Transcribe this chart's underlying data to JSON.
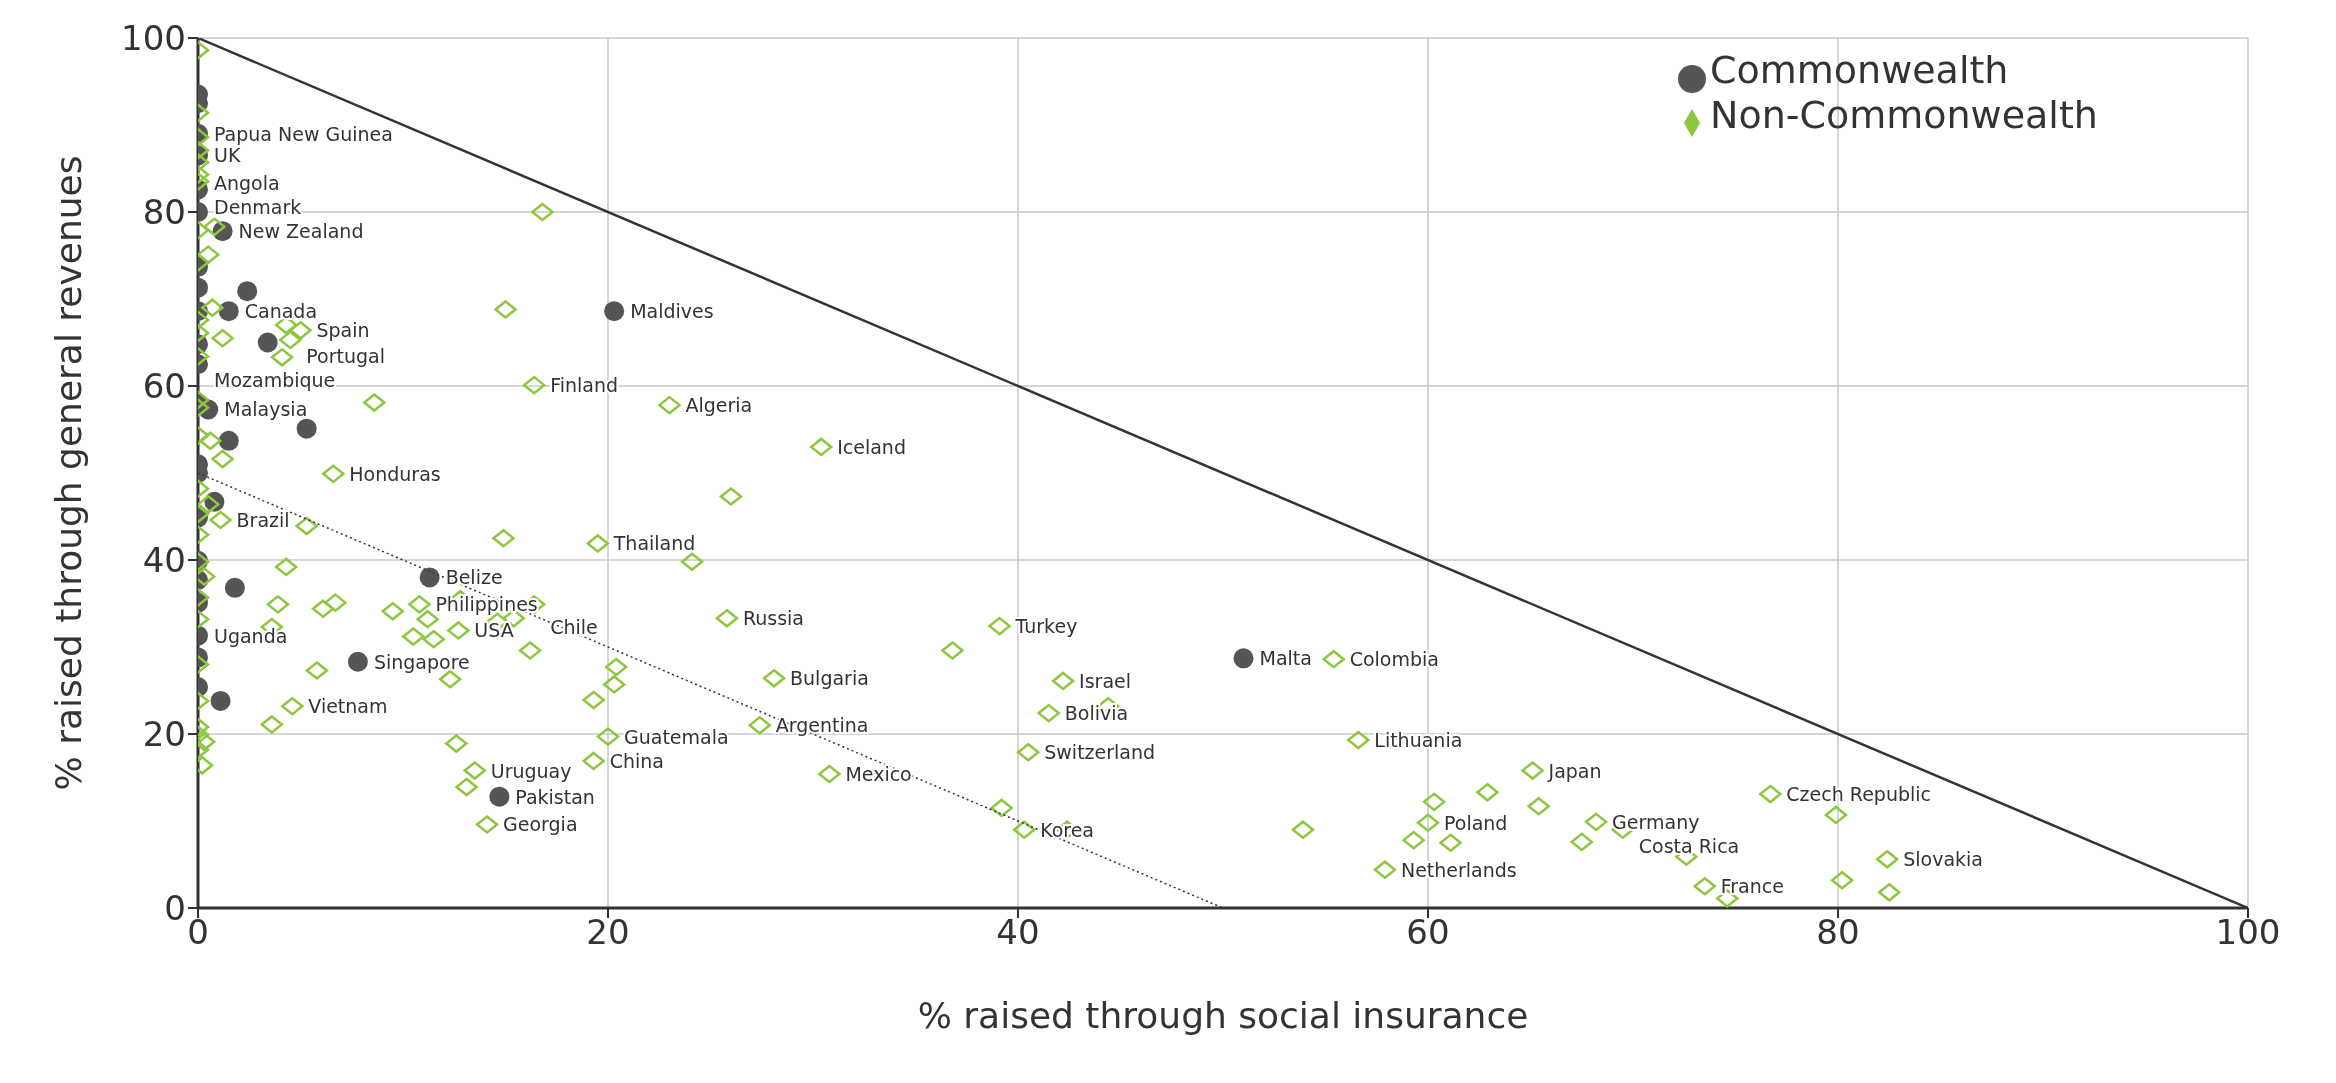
{
  "chart_data": {
    "type": "scatter",
    "xlabel": "% raised through social insurance",
    "ylabel": "% raised through general revenues",
    "xlim": [
      0,
      100
    ],
    "ylim": [
      0,
      100
    ],
    "xticks": [
      0,
      20,
      40,
      60,
      80,
      100
    ],
    "yticks": [
      0,
      20,
      40,
      60,
      80,
      100
    ],
    "grid": true,
    "legend": "top right",
    "series": [
      {
        "name": "Commonwealth",
        "color": "#555555",
        "marker": "circle",
        "x": [
          0,
          0,
          0,
          0,
          0,
          0,
          1.2,
          0,
          0,
          0,
          2.4,
          1.5,
          0,
          3.4,
          0,
          0.5,
          0,
          5.3,
          1.5,
          0,
          0,
          0.8,
          0,
          0,
          0,
          1.8,
          0,
          0,
          0,
          0,
          1.1,
          11.3,
          7.8,
          14.7,
          20.3,
          51
        ],
        "values": [
          93.5,
          92.5,
          89,
          86.5,
          82.6,
          80,
          77.8,
          73.7,
          71.3,
          68.6,
          70.9,
          68.6,
          64.8,
          65,
          62.5,
          57.3,
          58,
          55.1,
          53.7,
          51,
          50,
          46.7,
          44.9,
          39.9,
          37.7,
          36.8,
          35.1,
          31.3,
          28.8,
          25.4,
          23.8,
          38,
          28.3,
          12.8,
          68.6,
          28.7
        ]
      },
      {
        "name": "Non-Commonwealth",
        "color": "#8dc63f",
        "marker": "diamond",
        "x": [
          0,
          0,
          0,
          0,
          0,
          0,
          0,
          0,
          0.5,
          0,
          0.7,
          0,
          0,
          0,
          0,
          0,
          0,
          0.8,
          16.8,
          15,
          4.3,
          5,
          1.2,
          4.5,
          4.1,
          16.4,
          8.6,
          0.6,
          1.2,
          6.6,
          0,
          0.5,
          0,
          1.1,
          5.3,
          0,
          14.9,
          19.5,
          0,
          4.3,
          0.3,
          0,
          3.9,
          6.1,
          6.7,
          9.5,
          10.8,
          12.8,
          16.4,
          11.2,
          14.6,
          15.4,
          3.6,
          0,
          10.5,
          11.5,
          12.7,
          16.2,
          0,
          20.4,
          5.8,
          20.3,
          12.3,
          19.3,
          0,
          4.6,
          3.6,
          0,
          0,
          0.3,
          0,
          0.2,
          12.6,
          20,
          19.3,
          13.5,
          13.1,
          14.1,
          23,
          30.4,
          26,
          24.1,
          25.8,
          39.1,
          36.8,
          28.1,
          42.2,
          41.5,
          44.4,
          27.4,
          40.5,
          30.8,
          39.2,
          40.3,
          42.4,
          55.4,
          56.6,
          65.1,
          62.9,
          60.3,
          65.4,
          76.7,
          60,
          53.9,
          68.2,
          69.5,
          59.3,
          61.1,
          67.5,
          72.6,
          57.9,
          73.5,
          74.6,
          79.9,
          82.4,
          80.2,
          82.5
        ],
        "values": [
          98.6,
          91.4,
          88.6,
          87.1,
          85.7,
          84.3,
          83.5,
          77.9,
          75.1,
          74.2,
          69,
          67.6,
          66.1,
          63.4,
          58.4,
          57.5,
          54.3,
          78.3,
          80,
          68.8,
          67,
          66.4,
          65.5,
          65.3,
          63.3,
          60.1,
          58.1,
          53.7,
          51.6,
          49.9,
          48.2,
          46.4,
          45.3,
          44.6,
          43.9,
          42.9,
          42.5,
          41.9,
          39.8,
          39.2,
          38.1,
          35.7,
          34.9,
          34.4,
          35.1,
          34.1,
          34.9,
          35.5,
          34.9,
          33.2,
          32.9,
          33.3,
          32.3,
          33.2,
          31.2,
          30.9,
          31.9,
          29.6,
          28,
          27.7,
          27.3,
          25.7,
          26.3,
          23.9,
          23.8,
          23.2,
          21.1,
          20.8,
          19.9,
          19.1,
          18.2,
          16.4,
          18.9,
          19.7,
          16.9,
          15.8,
          13.9,
          9.6,
          57.8,
          53,
          47.3,
          39.8,
          33.3,
          32.4,
          29.6,
          26.4,
          26.1,
          22.4,
          23.2,
          21,
          17.9,
          15.4,
          11.5,
          9,
          9,
          28.6,
          19.3,
          15.8,
          13.3,
          12.2,
          11.7,
          13.1,
          9.8,
          9,
          9.9,
          9,
          7.8,
          7.5,
          7.6,
          5.9,
          4.4,
          2.5,
          1.1,
          10.7,
          5.6,
          3.2,
          1.8
        ]
      },
      {
        "type": "line",
        "color": "#333333",
        "line_style": "solid",
        "x": [
          0,
          100
        ],
        "values": [
          100,
          0
        ]
      },
      {
        "type": "line",
        "color": "#333333",
        "line_style": "dotted",
        "x": [
          0,
          50
        ],
        "values": [
          50,
          0
        ]
      }
    ],
    "annotations": [
      {
        "text": "Papua New Guinea",
        "x": 0,
        "y": 89
      },
      {
        "text": "UK",
        "x": 0,
        "y": 86.5
      },
      {
        "text": "Angola",
        "x": 0,
        "y": 84.3
      },
      {
        "text": "Denmark",
        "x": 0,
        "y": 81.5
      },
      {
        "text": "New Zealand",
        "x": 1.2,
        "y": 77.8
      },
      {
        "text": "Canada",
        "x": 1.5,
        "y": 68.6
      },
      {
        "text": "Spain",
        "x": 5,
        "y": 66.4
      },
      {
        "text": "Portugal",
        "x": 4.5,
        "y": 65.3
      },
      {
        "text": "Mozambique",
        "x": 0,
        "y": 62.5
      },
      {
        "text": "Malaysia",
        "x": 0.5,
        "y": 57.3
      },
      {
        "text": "Honduras",
        "x": 6.6,
        "y": 49.9
      },
      {
        "text": "Brazil",
        "x": 1.1,
        "y": 44.6
      },
      {
        "text": "Belize",
        "x": 11.3,
        "y": 38
      },
      {
        "text": "Philippines",
        "x": 10.8,
        "y": 34.9
      },
      {
        "text": "Chile",
        "x": 16.4,
        "y": 33.2
      },
      {
        "text": "USA",
        "x": 12.7,
        "y": 31.9
      },
      {
        "text": "Uganda",
        "x": 0,
        "y": 31.3
      },
      {
        "text": "Singapore",
        "x": 7.8,
        "y": 28.3
      },
      {
        "text": "Vietnam",
        "x": 4.6,
        "y": 23.2
      },
      {
        "text": "Uruguay",
        "x": 13.5,
        "y": 15.8
      },
      {
        "text": "Pakistan",
        "x": 14.7,
        "y": 12.8
      },
      {
        "text": "Georgia",
        "x": 14.1,
        "y": 9.6
      },
      {
        "text": "China",
        "x": 19.3,
        "y": 16.9
      },
      {
        "text": "Guatemala",
        "x": 20,
        "y": 19.7
      },
      {
        "text": "Thailand",
        "x": 19.5,
        "y": 41.9
      },
      {
        "text": "Maldives",
        "x": 20.3,
        "y": 68.6
      },
      {
        "text": "Finland",
        "x": 16.4,
        "y": 60.1
      },
      {
        "text": "Algeria",
        "x": 23,
        "y": 57.8
      },
      {
        "text": "Iceland",
        "x": 30.4,
        "y": 53
      },
      {
        "text": "Russia",
        "x": 25.8,
        "y": 33.3
      },
      {
        "text": "Bulgaria",
        "x": 28.1,
        "y": 26.4
      },
      {
        "text": "Argentina",
        "x": 27.4,
        "y": 21
      },
      {
        "text": "Mexico",
        "x": 30.8,
        "y": 15.4
      },
      {
        "text": "Turkey",
        "x": 39.1,
        "y": 32.4
      },
      {
        "text": "Israel",
        "x": 42.2,
        "y": 26.1
      },
      {
        "text": "Bolivia",
        "x": 41.5,
        "y": 22.4
      },
      {
        "text": "Switzerland",
        "x": 40.5,
        "y": 17.9
      },
      {
        "text": "Korea",
        "x": 40.3,
        "y": 9
      },
      {
        "text": "Malta",
        "x": 51,
        "y": 28.7
      },
      {
        "text": "Colombia",
        "x": 55.4,
        "y": 28.6
      },
      {
        "text": "Lithuania",
        "x": 56.6,
        "y": 19.3
      },
      {
        "text": "Japan",
        "x": 65.1,
        "y": 15.8
      },
      {
        "text": "Poland",
        "x": 60,
        "y": 9.8
      },
      {
        "text": "Netherlands",
        "x": 57.9,
        "y": 4.4
      },
      {
        "text": "Germany",
        "x": 68.2,
        "y": 9.9
      },
      {
        "text": "Costa Rica",
        "x": 69.5,
        "y": 9
      },
      {
        "text": "Czech Republic",
        "x": 76.7,
        "y": 13.1
      },
      {
        "text": "France",
        "x": 73.5,
        "y": 2.5
      },
      {
        "text": "Slovakia",
        "x": 82.4,
        "y": 5.6
      }
    ]
  }
}
